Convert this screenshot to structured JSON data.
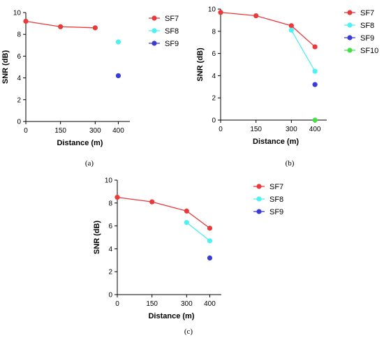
{
  "chart_data": [
    {
      "type": "line",
      "caption": "(a)",
      "xlabel": "Distance (m)",
      "ylabel": "SNR (dB)",
      "x_ticks": [
        "0",
        "150",
        "300",
        "400"
      ],
      "y_ticks": [
        "0",
        "2",
        "4",
        "6",
        "8",
        "10"
      ],
      "xlim": [
        0,
        450
      ],
      "ylim": [
        0,
        10
      ],
      "legend_position": "top-right",
      "series": [
        {
          "name": "SF7",
          "color": "#e8393b",
          "x": [
            0,
            150,
            300
          ],
          "y": [
            9.2,
            8.7,
            8.6
          ]
        },
        {
          "name": "SF8",
          "color": "#4ff0f2",
          "x": [
            400
          ],
          "y": [
            7.3
          ]
        },
        {
          "name": "SF9",
          "color": "#3b3bd8",
          "x": [
            400
          ],
          "y": [
            4.2
          ]
        }
      ]
    },
    {
      "type": "line",
      "caption": "(b)",
      "xlabel": "Distance (m)",
      "ylabel": "SNR (dB)",
      "x_ticks": [
        "0",
        "150",
        "300",
        "400"
      ],
      "y_ticks": [
        "0",
        "2",
        "4",
        "6",
        "8",
        "10"
      ],
      "xlim": [
        0,
        450
      ],
      "ylim": [
        0,
        10
      ],
      "legend_position": "top-right",
      "series": [
        {
          "name": "SF7",
          "color": "#e8393b",
          "x": [
            0,
            150,
            300,
            400
          ],
          "y": [
            9.7,
            9.4,
            8.5,
            6.6
          ]
        },
        {
          "name": "SF8",
          "color": "#4ff0f2",
          "x": [
            300,
            400
          ],
          "y": [
            8.1,
            4.4
          ]
        },
        {
          "name": "SF9",
          "color": "#3b3bd8",
          "x": [
            400
          ],
          "y": [
            3.2
          ]
        },
        {
          "name": "SF10",
          "color": "#46e046",
          "x": [
            400
          ],
          "y": [
            0.0
          ]
        }
      ]
    },
    {
      "type": "line",
      "caption": "(c)",
      "xlabel": "Distance (m)",
      "ylabel": "SNR (dB)",
      "x_ticks": [
        "0",
        "150",
        "300",
        "400"
      ],
      "y_ticks": [
        "0",
        "2",
        "4",
        "6",
        "8",
        "10"
      ],
      "xlim": [
        0,
        450
      ],
      "ylim": [
        0,
        10
      ],
      "legend_position": "top-right",
      "series": [
        {
          "name": "SF7",
          "color": "#e8393b",
          "x": [
            0,
            150,
            300,
            400
          ],
          "y": [
            8.5,
            8.1,
            7.3,
            5.8
          ]
        },
        {
          "name": "SF8",
          "color": "#4ff0f2",
          "x": [
            300,
            400
          ],
          "y": [
            6.3,
            4.7
          ]
        },
        {
          "name": "SF9",
          "color": "#3b3bd8",
          "x": [
            400
          ],
          "y": [
            3.2
          ]
        }
      ]
    }
  ]
}
